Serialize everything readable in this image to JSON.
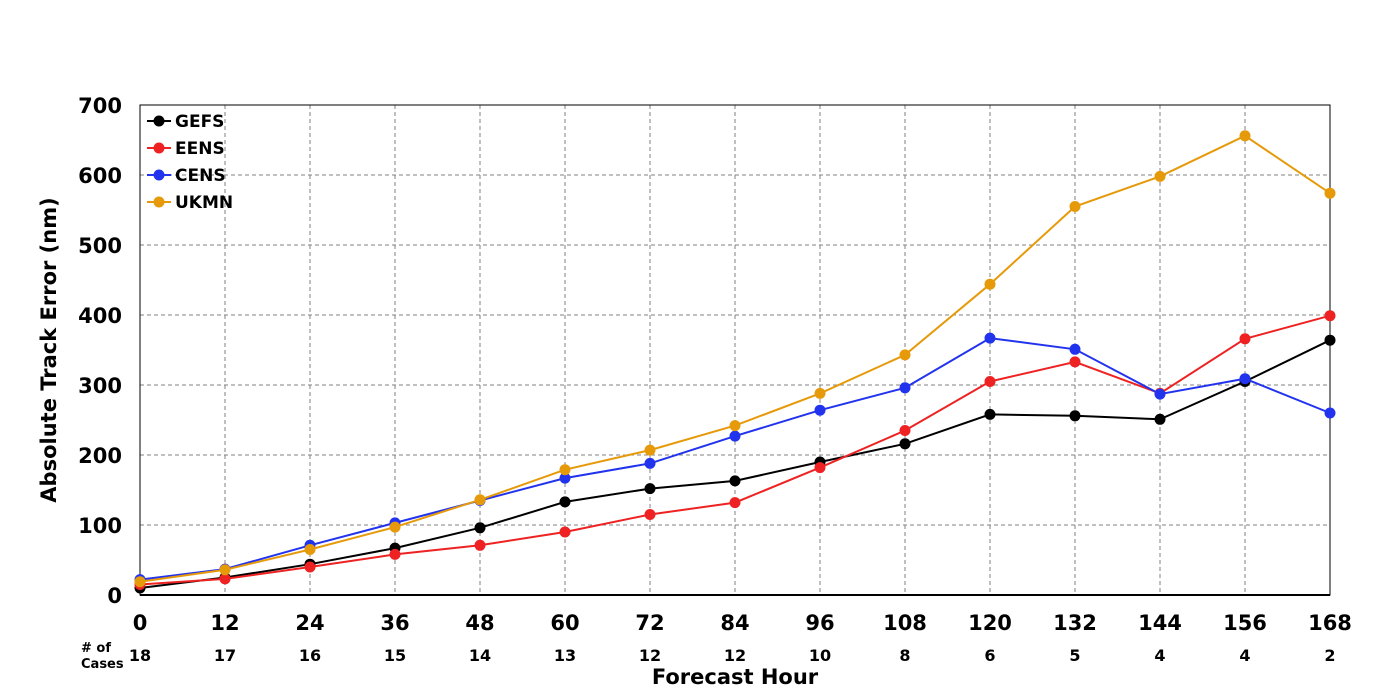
{
  "chart_data": {
    "type": "line",
    "title": "",
    "xlabel": "Forecast Hour",
    "ylabel": "Absolute Track Error (nm)",
    "x": [
      0,
      12,
      24,
      36,
      48,
      60,
      72,
      84,
      96,
      108,
      120,
      132,
      144,
      156,
      168
    ],
    "xlim": [
      0,
      168
    ],
    "ylim": [
      0,
      700
    ],
    "y_ticks": [
      0,
      100,
      200,
      300,
      400,
      500,
      600,
      700
    ],
    "grid": true,
    "legend_position": "top-left",
    "cases_label": "# of\nCases",
    "cases": [
      18,
      17,
      16,
      15,
      14,
      13,
      12,
      12,
      10,
      8,
      6,
      5,
      4,
      4,
      2
    ],
    "series": [
      {
        "name": "GEFS",
        "color": "#000000",
        "values": [
          10,
          25,
          44,
          67,
          96,
          133,
          152,
          163,
          190,
          216,
          258,
          256,
          251,
          305,
          364
        ]
      },
      {
        "name": "EENS",
        "color": "#ee2222",
        "values": [
          15,
          23,
          40,
          58,
          71,
          90,
          115,
          132,
          182,
          235,
          305,
          333,
          288,
          366,
          399
        ]
      },
      {
        "name": "CENS",
        "color": "#2233ee",
        "values": [
          22,
          37,
          71,
          103,
          135,
          167,
          188,
          227,
          264,
          296,
          367,
          351,
          287,
          309,
          260
        ]
      },
      {
        "name": "UKMN",
        "color": "#e69a0a",
        "values": [
          19,
          36,
          65,
          97,
          136,
          179,
          207,
          242,
          288,
          343,
          444,
          555,
          598,
          656,
          574
        ]
      }
    ]
  }
}
